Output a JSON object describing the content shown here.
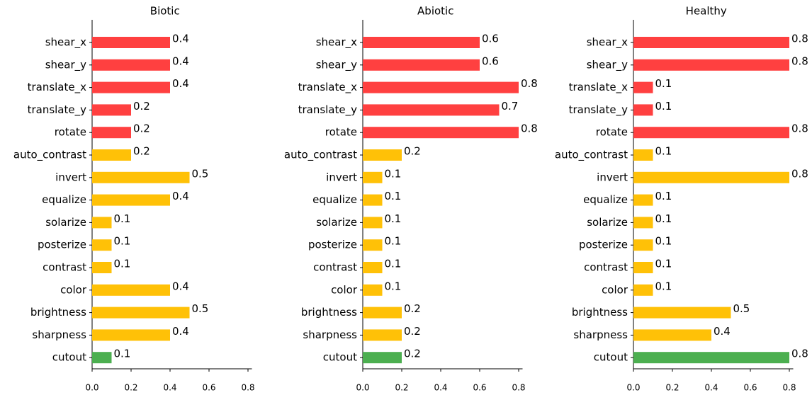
{
  "chart_data": [
    {
      "type": "barh",
      "title": "Biotic",
      "categories": [
        "shear_x",
        "shear_y",
        "translate_x",
        "translate_y",
        "rotate",
        "auto_contrast",
        "invert",
        "equalize",
        "solarize",
        "posterize",
        "contrast",
        "color",
        "brightness",
        "sharpness",
        "cutout"
      ],
      "values": [
        0.4,
        0.4,
        0.4,
        0.2,
        0.2,
        0.2,
        0.5,
        0.4,
        0.1,
        0.1,
        0.1,
        0.4,
        0.5,
        0.4,
        0.1
      ],
      "colors": [
        "#ff4040",
        "#ff4040",
        "#ff4040",
        "#ff4040",
        "#ff4040",
        "#ffc107",
        "#ffc107",
        "#ffc107",
        "#ffc107",
        "#ffc107",
        "#ffc107",
        "#ffc107",
        "#ffc107",
        "#ffc107",
        "#4caf50"
      ],
      "xlim": [
        0,
        0.82
      ],
      "xticks": [
        {
          "value": 0,
          "label": "0.0"
        },
        0.2,
        0.4,
        0.6,
        0.8
      ]
    },
    {
      "type": "barh",
      "title": "Abiotic",
      "categories": [
        "shear_x",
        "shear_y",
        "translate_x",
        "translate_y",
        "rotate",
        "auto_contrast",
        "invert",
        "equalize",
        "solarize",
        "posterize",
        "contrast",
        "color",
        "brightness",
        "sharpness",
        "cutout"
      ],
      "values": [
        0.6,
        0.6,
        0.8,
        0.7,
        0.8,
        0.2,
        0.1,
        0.1,
        0.1,
        0.1,
        0.1,
        0.1,
        0.2,
        0.2,
        0.2
      ],
      "colors": [
        "#ff4040",
        "#ff4040",
        "#ff4040",
        "#ff4040",
        "#ff4040",
        "#ffc107",
        "#ffc107",
        "#ffc107",
        "#ffc107",
        "#ffc107",
        "#ffc107",
        "#ffc107",
        "#ffc107",
        "#ffc107",
        "#4caf50"
      ],
      "xlim": [
        0,
        0.82
      ],
      "xticks": [
        {
          "value": 0,
          "label": "0.0"
        },
        0.2,
        0.4,
        0.6,
        0.8
      ]
    },
    {
      "type": "barh",
      "title": "Healthy",
      "categories": [
        "shear_x",
        "shear_y",
        "translate_x",
        "translate_y",
        "rotate",
        "auto_contrast",
        "invert",
        "equalize",
        "solarize",
        "posterize",
        "contrast",
        "color",
        "brightness",
        "sharpness",
        "cutout"
      ],
      "values": [
        0.8,
        0.8,
        0.1,
        0.1,
        0.8,
        0.1,
        0.8,
        0.1,
        0.1,
        0.1,
        0.1,
        0.1,
        0.5,
        0.4,
        0.8
      ],
      "colors": [
        "#ff4040",
        "#ff4040",
        "#ff4040",
        "#ff4040",
        "#ff4040",
        "#ffc107",
        "#ffc107",
        "#ffc107",
        "#ffc107",
        "#ffc107",
        "#ffc107",
        "#ffc107",
        "#ffc107",
        "#ffc107",
        "#4caf50"
      ],
      "xlim": [
        0,
        0.82
      ],
      "xticks": [
        {
          "value": 0,
          "label": "0.0"
        },
        0.2,
        0.4,
        0.6,
        0.8
      ]
    }
  ]
}
